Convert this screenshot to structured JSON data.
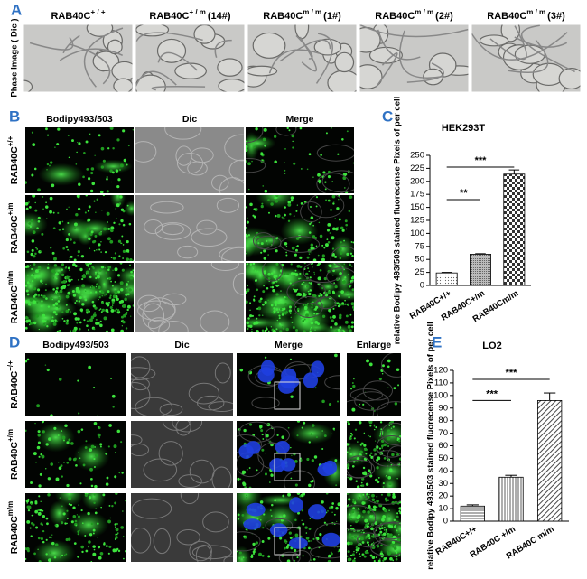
{
  "panel_labels": [
    "A",
    "B",
    "C",
    "D",
    "E"
  ],
  "panel_a": {
    "side_label": "Phase Image ( Dic )",
    "headers": [
      {
        "name": "RAB40C",
        "genotype": "+ / +"
      },
      {
        "name": "RAB40C",
        "genotype": "+ / m",
        "clone": "(14#)"
      },
      {
        "name": "RAB40C",
        "genotype": "m / m",
        "clone": "(1#)"
      },
      {
        "name": "RAB40C",
        "genotype": "m / m",
        "clone": "(2#)"
      },
      {
        "name": "RAB40C",
        "genotype": "m / m",
        "clone": "(3#)"
      }
    ]
  },
  "panel_b": {
    "columns": [
      "Bodipy493/503",
      "Dic",
      "Merge"
    ],
    "rows": [
      {
        "name": "RAB40C",
        "genotype": "+/+"
      },
      {
        "name": "RAB40C",
        "genotype": "+/m"
      },
      {
        "name": "RAB40C",
        "genotype": "m/m"
      }
    ]
  },
  "panel_d": {
    "columns": [
      "Bodipy493/503",
      "Dic",
      "Merge",
      "Enlarge"
    ],
    "rows": [
      {
        "name": "RAB40C",
        "genotype": "+/+"
      },
      {
        "name": "RAB40C",
        "genotype": "+/m"
      },
      {
        "name": "RAB40C",
        "genotype": "m/m"
      }
    ]
  },
  "chart_data": [
    {
      "type": "bar",
      "title": "HEK293T",
      "y_label": "relative Bodipy 493/503 stained fluorecense Pixels of per cell",
      "categories": [
        "RAB40C+/+",
        "RAB40C+/m",
        "RAB40Cm/m"
      ],
      "values": [
        24,
        60,
        214
      ],
      "errors": [
        1,
        1,
        8
      ],
      "ylim": [
        0,
        250
      ],
      "yticks": [
        0,
        25,
        50,
        75,
        100,
        125,
        150,
        175,
        200,
        225,
        250
      ],
      "significance": [
        {
          "pair": [
            "RAB40C+/+",
            "RAB40C+/m"
          ],
          "label": "**"
        },
        {
          "pair": [
            "RAB40C+/+",
            "RAB40Cm/m"
          ],
          "label": "***"
        }
      ]
    },
    {
      "type": "bar",
      "title": "LO2",
      "y_label": "relative Bodipy 493/503 stained fluorecense Pixels of per cell",
      "categories": [
        "RAB40C+/+",
        "RAB40C +/m",
        "RAB40C m/m"
      ],
      "values": [
        12,
        35,
        96
      ],
      "errors": [
        1,
        1.5,
        6
      ],
      "ylim": [
        0,
        120
      ],
      "yticks": [
        0,
        10,
        20,
        30,
        40,
        50,
        60,
        70,
        80,
        90,
        100,
        110,
        120
      ],
      "significance": [
        {
          "pair": [
            "RAB40C+/+",
            "RAB40C +/m"
          ],
          "label": "***"
        },
        {
          "pair": [
            "RAB40C+/+",
            "RAB40C m/m"
          ],
          "label": "***"
        }
      ]
    }
  ]
}
